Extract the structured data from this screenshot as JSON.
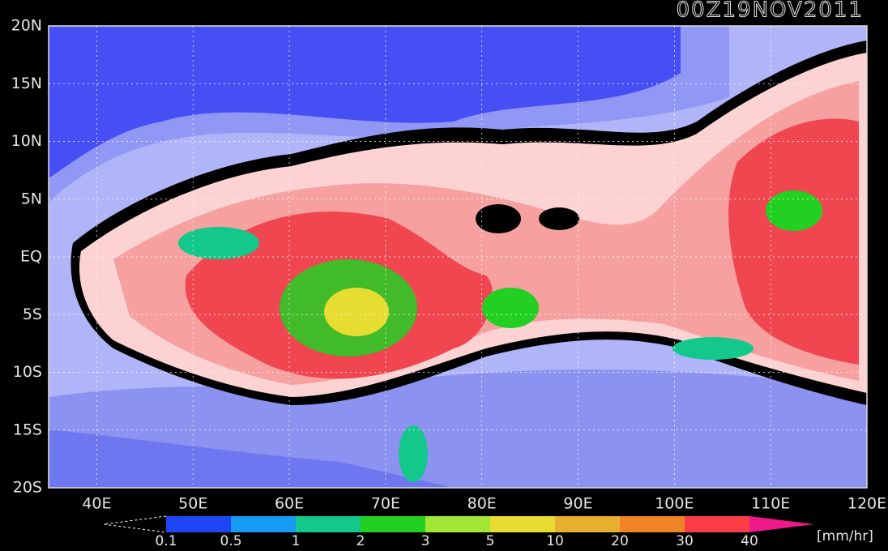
{
  "title": "00Z19NOV2011",
  "lat_labels": [
    "20N",
    "15N",
    "10N",
    "5N",
    "EQ",
    "5S",
    "10S",
    "15S",
    "20S"
  ],
  "lon_labels": [
    "40E",
    "50E",
    "60E",
    "70E",
    "80E",
    "90E",
    "100E",
    "110E",
    "120E"
  ],
  "colorbar": {
    "levels": [
      "0.1",
      "0.5",
      "1",
      "2",
      "3",
      "5",
      "10",
      "20",
      "30",
      "40"
    ],
    "colors": [
      "#1e46f5",
      "#169bf5",
      "#14c88c",
      "#22d022",
      "#a0e632",
      "#e6dc32",
      "#e6af2d",
      "#f08228",
      "#fa3c46"
    ],
    "over_color": "#f0198c",
    "unit": "[mm/hr]"
  }
}
